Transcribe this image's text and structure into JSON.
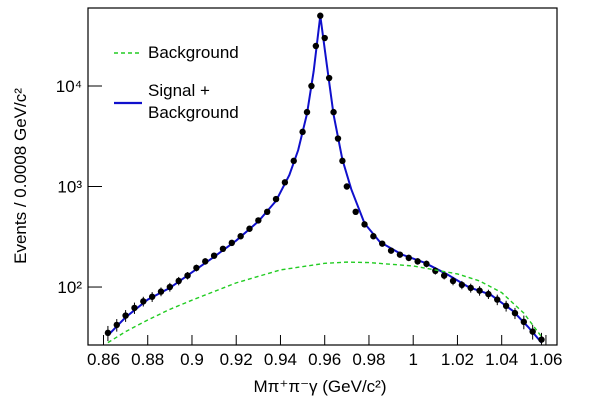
{
  "chart_data": {
    "type": "scatter",
    "x_label": "Mπ⁺π⁻γ (GeV/c²)",
    "y_label": "Events / 0.0008 GeV/c²",
    "log_y": true,
    "xlim": [
      0.853,
      1.065
    ],
    "ylim": [
      26.5,
      59700
    ],
    "xticks": [
      0.86,
      0.88,
      0.9,
      0.92,
      0.94,
      0.96,
      0.98,
      1,
      1.02,
      1.04,
      1.06
    ],
    "yticks": [
      {
        "value": 100,
        "label": "10²"
      },
      {
        "value": 1000,
        "label": "10³"
      },
      {
        "value": 10000,
        "label": "10⁴"
      }
    ],
    "legend": "upper left",
    "series": [
      {
        "style": "points",
        "color": "#000000",
        "x": [
          0.862,
          0.866,
          0.87,
          0.874,
          0.878,
          0.882,
          0.886,
          0.89,
          0.894,
          0.898,
          0.902,
          0.906,
          0.91,
          0.914,
          0.918,
          0.922,
          0.926,
          0.93,
          0.934,
          0.938,
          0.942,
          0.946,
          0.95,
          0.952,
          0.954,
          0.956,
          0.958,
          0.96,
          0.962,
          0.964,
          0.966,
          0.968,
          0.97,
          0.974,
          0.978,
          0.982,
          0.986,
          0.99,
          0.994,
          0.998,
          1.002,
          1.006,
          1.01,
          1.014,
          1.018,
          1.022,
          1.026,
          1.03,
          1.034,
          1.038,
          1.042,
          1.046,
          1.05,
          1.054,
          1.058
        ],
        "values": [
          35,
          42,
          52,
          62,
          72,
          80,
          90,
          100,
          115,
          130,
          155,
          180,
          205,
          240,
          275,
          320,
          380,
          460,
          560,
          750,
          1100,
          1800,
          3500,
          5500,
          10000,
          25000,
          50000,
          30000,
          12000,
          5500,
          3000,
          1800,
          1000,
          560,
          420,
          320,
          270,
          230,
          210,
          195,
          180,
          170,
          145,
          130,
          115,
          105,
          98,
          92,
          85,
          75,
          65,
          55,
          45,
          36,
          30
        ],
        "errors": [
          6,
          6,
          7,
          8,
          8,
          9,
          9,
          10,
          11,
          11,
          12,
          13,
          14,
          15,
          17,
          18,
          19,
          21,
          24,
          27,
          33,
          42,
          59,
          74,
          100,
          158,
          224,
          173,
          110,
          74,
          55,
          42,
          32,
          24,
          20,
          18,
          16,
          15,
          14,
          14,
          13,
          13,
          12,
          11,
          11,
          10,
          10,
          10,
          9,
          9,
          8,
          7,
          7,
          6,
          5
        ]
      },
      {
        "name": "Background",
        "style": "line",
        "dash": true,
        "color": "#22cc22",
        "x": [
          0.862,
          0.87,
          0.88,
          0.89,
          0.9,
          0.92,
          0.94,
          0.96,
          0.97,
          0.98,
          1.0,
          1.02,
          1.03,
          1.04,
          1.05,
          1.058
        ],
        "values": [
          28,
          36,
          47,
          60,
          74,
          110,
          148,
          172,
          177,
          175,
          162,
          135,
          115,
          88,
          55,
          32
        ]
      },
      {
        "name": "Signal + Background",
        "style": "line",
        "dash": false,
        "color": "#1010cc",
        "x": [
          0.862,
          0.87,
          0.88,
          0.89,
          0.9,
          0.91,
          0.92,
          0.93,
          0.938,
          0.944,
          0.948,
          0.952,
          0.955,
          0.958,
          0.961,
          0.964,
          0.968,
          0.972,
          0.978,
          0.985,
          0.995,
          1.005,
          1.015,
          1.025,
          1.035,
          1.045,
          1.052,
          1.058
        ],
        "values": [
          33,
          50,
          75,
          98,
          140,
          200,
          290,
          450,
          720,
          1300,
          2300,
          5300,
          14000,
          50000,
          16000,
          5200,
          1850,
          940,
          430,
          280,
          210,
          175,
          135,
          100,
          84,
          58,
          40,
          28
        ]
      }
    ]
  }
}
